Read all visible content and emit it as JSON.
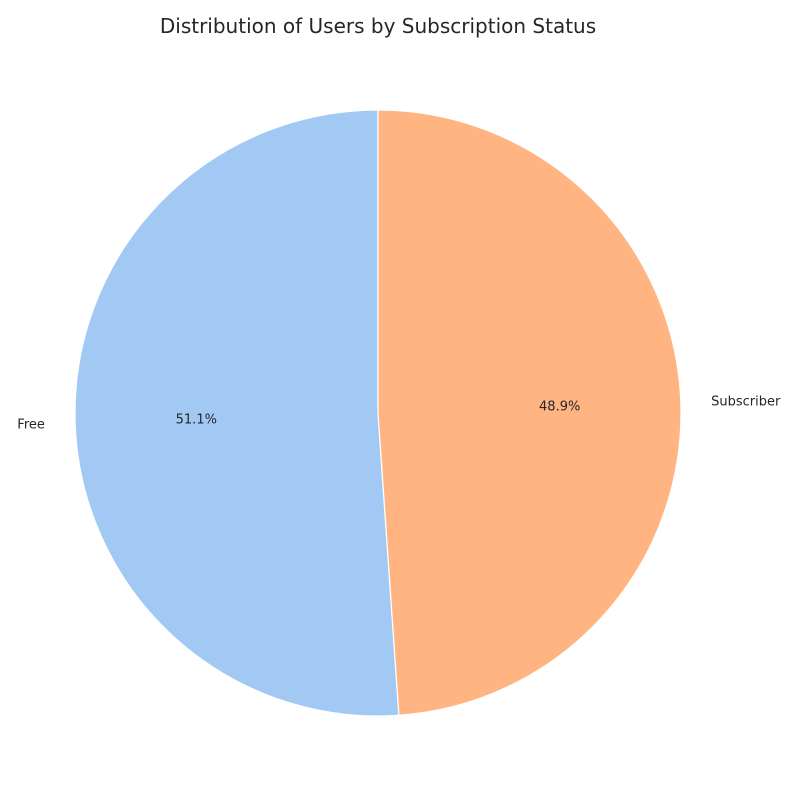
{
  "chart_data": {
    "type": "pie",
    "title": "Distribution of Users by Subscription Status",
    "categories": [
      "Free",
      "Subscriber"
    ],
    "values": [
      51.1,
      48.9
    ],
    "percent_labels": [
      "51.1%",
      "48.9%"
    ],
    "colors": [
      "#a1c9f4",
      "#ffb482"
    ],
    "start_angle_deg": 90,
    "direction": "counterclockwise",
    "legend": "none"
  }
}
